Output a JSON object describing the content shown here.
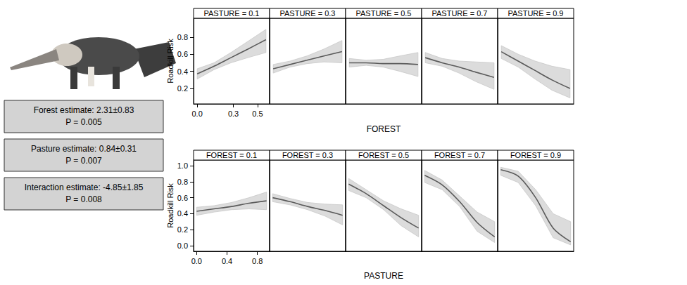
{
  "chart_data": [
    {
      "type": "line",
      "xlabel": "FOREST",
      "ylabel": "Roadkill Risk",
      "color": "#5a5a5a",
      "xlim": [
        -0.03,
        0.6
      ],
      "xticks": [
        {
          "value": 0,
          "label": "0.0"
        },
        0.3,
        0.5
      ],
      "ylim": [
        0.02,
        1.02
      ],
      "yticks": [
        0.2,
        0.4,
        0.6,
        0.8
      ],
      "x": [
        0,
        0.14,
        0.28,
        0.42,
        0.57
      ],
      "panels": [
        {
          "title": "PASTURE = 0.1",
          "values": [
            0.37,
            0.46,
            0.56,
            0.66,
            0.77
          ],
          "lower": [
            0.31,
            0.42,
            0.5,
            0.56,
            0.62
          ],
          "upper": [
            0.43,
            0.5,
            0.62,
            0.75,
            0.89
          ]
        },
        {
          "title": "PASTURE = 0.3",
          "values": [
            0.43,
            0.48,
            0.53,
            0.58,
            0.63
          ],
          "lower": [
            0.38,
            0.45,
            0.49,
            0.51,
            0.5
          ],
          "upper": [
            0.48,
            0.52,
            0.58,
            0.66,
            0.76
          ],
          "tick_labels": false
        },
        {
          "title": "PASTURE = 0.5",
          "values": [
            0.5,
            0.5,
            0.49,
            0.49,
            0.48
          ],
          "lower": [
            0.45,
            0.47,
            0.45,
            0.4,
            0.34
          ],
          "upper": [
            0.55,
            0.53,
            0.54,
            0.58,
            0.62
          ],
          "tick_labels": false
        },
        {
          "title": "PASTURE = 0.7",
          "values": [
            0.56,
            0.5,
            0.45,
            0.39,
            0.33
          ],
          "lower": [
            0.5,
            0.46,
            0.38,
            0.28,
            0.19
          ],
          "upper": [
            0.62,
            0.55,
            0.52,
            0.51,
            0.5
          ],
          "tick_labels": false
        },
        {
          "title": "PASTURE = 0.9",
          "values": [
            0.63,
            0.52,
            0.41,
            0.3,
            0.2
          ],
          "lower": [
            0.55,
            0.45,
            0.31,
            0.18,
            0.09
          ],
          "upper": [
            0.7,
            0.6,
            0.52,
            0.46,
            0.42
          ],
          "tick_labels": false
        }
      ]
    },
    {
      "type": "line",
      "xlabel": "PASTURE",
      "ylabel": "Roadkill Risk",
      "color": "#5a5a5a",
      "xlim": [
        -0.04,
        0.96
      ],
      "xticks": [
        {
          "value": 0,
          "label": "0.0"
        },
        0.4,
        0.8
      ],
      "ylim": [
        -0.07,
        1.07
      ],
      "yticks": [
        {
          "value": 0,
          "label": "0.0"
        },
        0.2,
        0.4,
        0.6,
        0.8,
        {
          "value": 1,
          "label": "1.0"
        }
      ],
      "x": [
        0,
        0.23,
        0.46,
        0.69,
        0.92
      ],
      "panels": [
        {
          "title": "FOREST = 0.1",
          "values": [
            0.43,
            0.46,
            0.49,
            0.53,
            0.56
          ],
          "lower": [
            0.38,
            0.42,
            0.45,
            0.46,
            0.45
          ],
          "upper": [
            0.48,
            0.5,
            0.54,
            0.6,
            0.67
          ]
        },
        {
          "title": "FOREST = 0.3",
          "values": [
            0.6,
            0.55,
            0.49,
            0.44,
            0.38
          ],
          "lower": [
            0.55,
            0.51,
            0.45,
            0.37,
            0.26
          ],
          "upper": [
            0.65,
            0.59,
            0.54,
            0.52,
            0.51
          ],
          "tick_labels": false
        },
        {
          "title": "FOREST = 0.5",
          "values": [
            0.77,
            0.65,
            0.5,
            0.35,
            0.22
          ],
          "lower": [
            0.69,
            0.6,
            0.45,
            0.25,
            0.11
          ],
          "upper": [
            0.84,
            0.7,
            0.56,
            0.46,
            0.38
          ],
          "tick_labels": false
        },
        {
          "title": "FOREST = 0.7",
          "values": [
            0.88,
            0.76,
            0.55,
            0.29,
            0.11
          ],
          "lower": [
            0.79,
            0.7,
            0.49,
            0.18,
            0.04
          ],
          "upper": [
            0.94,
            0.82,
            0.62,
            0.42,
            0.3
          ],
          "tick_labels": false
        },
        {
          "title": "FOREST = 0.9",
          "values": [
            0.95,
            0.87,
            0.6,
            0.22,
            0.05
          ],
          "lower": [
            0.88,
            0.79,
            0.5,
            0.1,
            0.01
          ],
          "upper": [
            0.98,
            0.93,
            0.7,
            0.4,
            0.3
          ],
          "tick_labels": false
        }
      ]
    }
  ],
  "annotations": [
    {
      "lines": [
        "Forest estimate: 2.31±0.83",
        "P = 0.005"
      ]
    },
    {
      "lines": [
        "Pasture estimate: 0.84±0.31",
        "P = 0.007"
      ]
    },
    {
      "lines": [
        "Interaction estimate: -4.85±1.85",
        "P = 0.008"
      ]
    }
  ]
}
